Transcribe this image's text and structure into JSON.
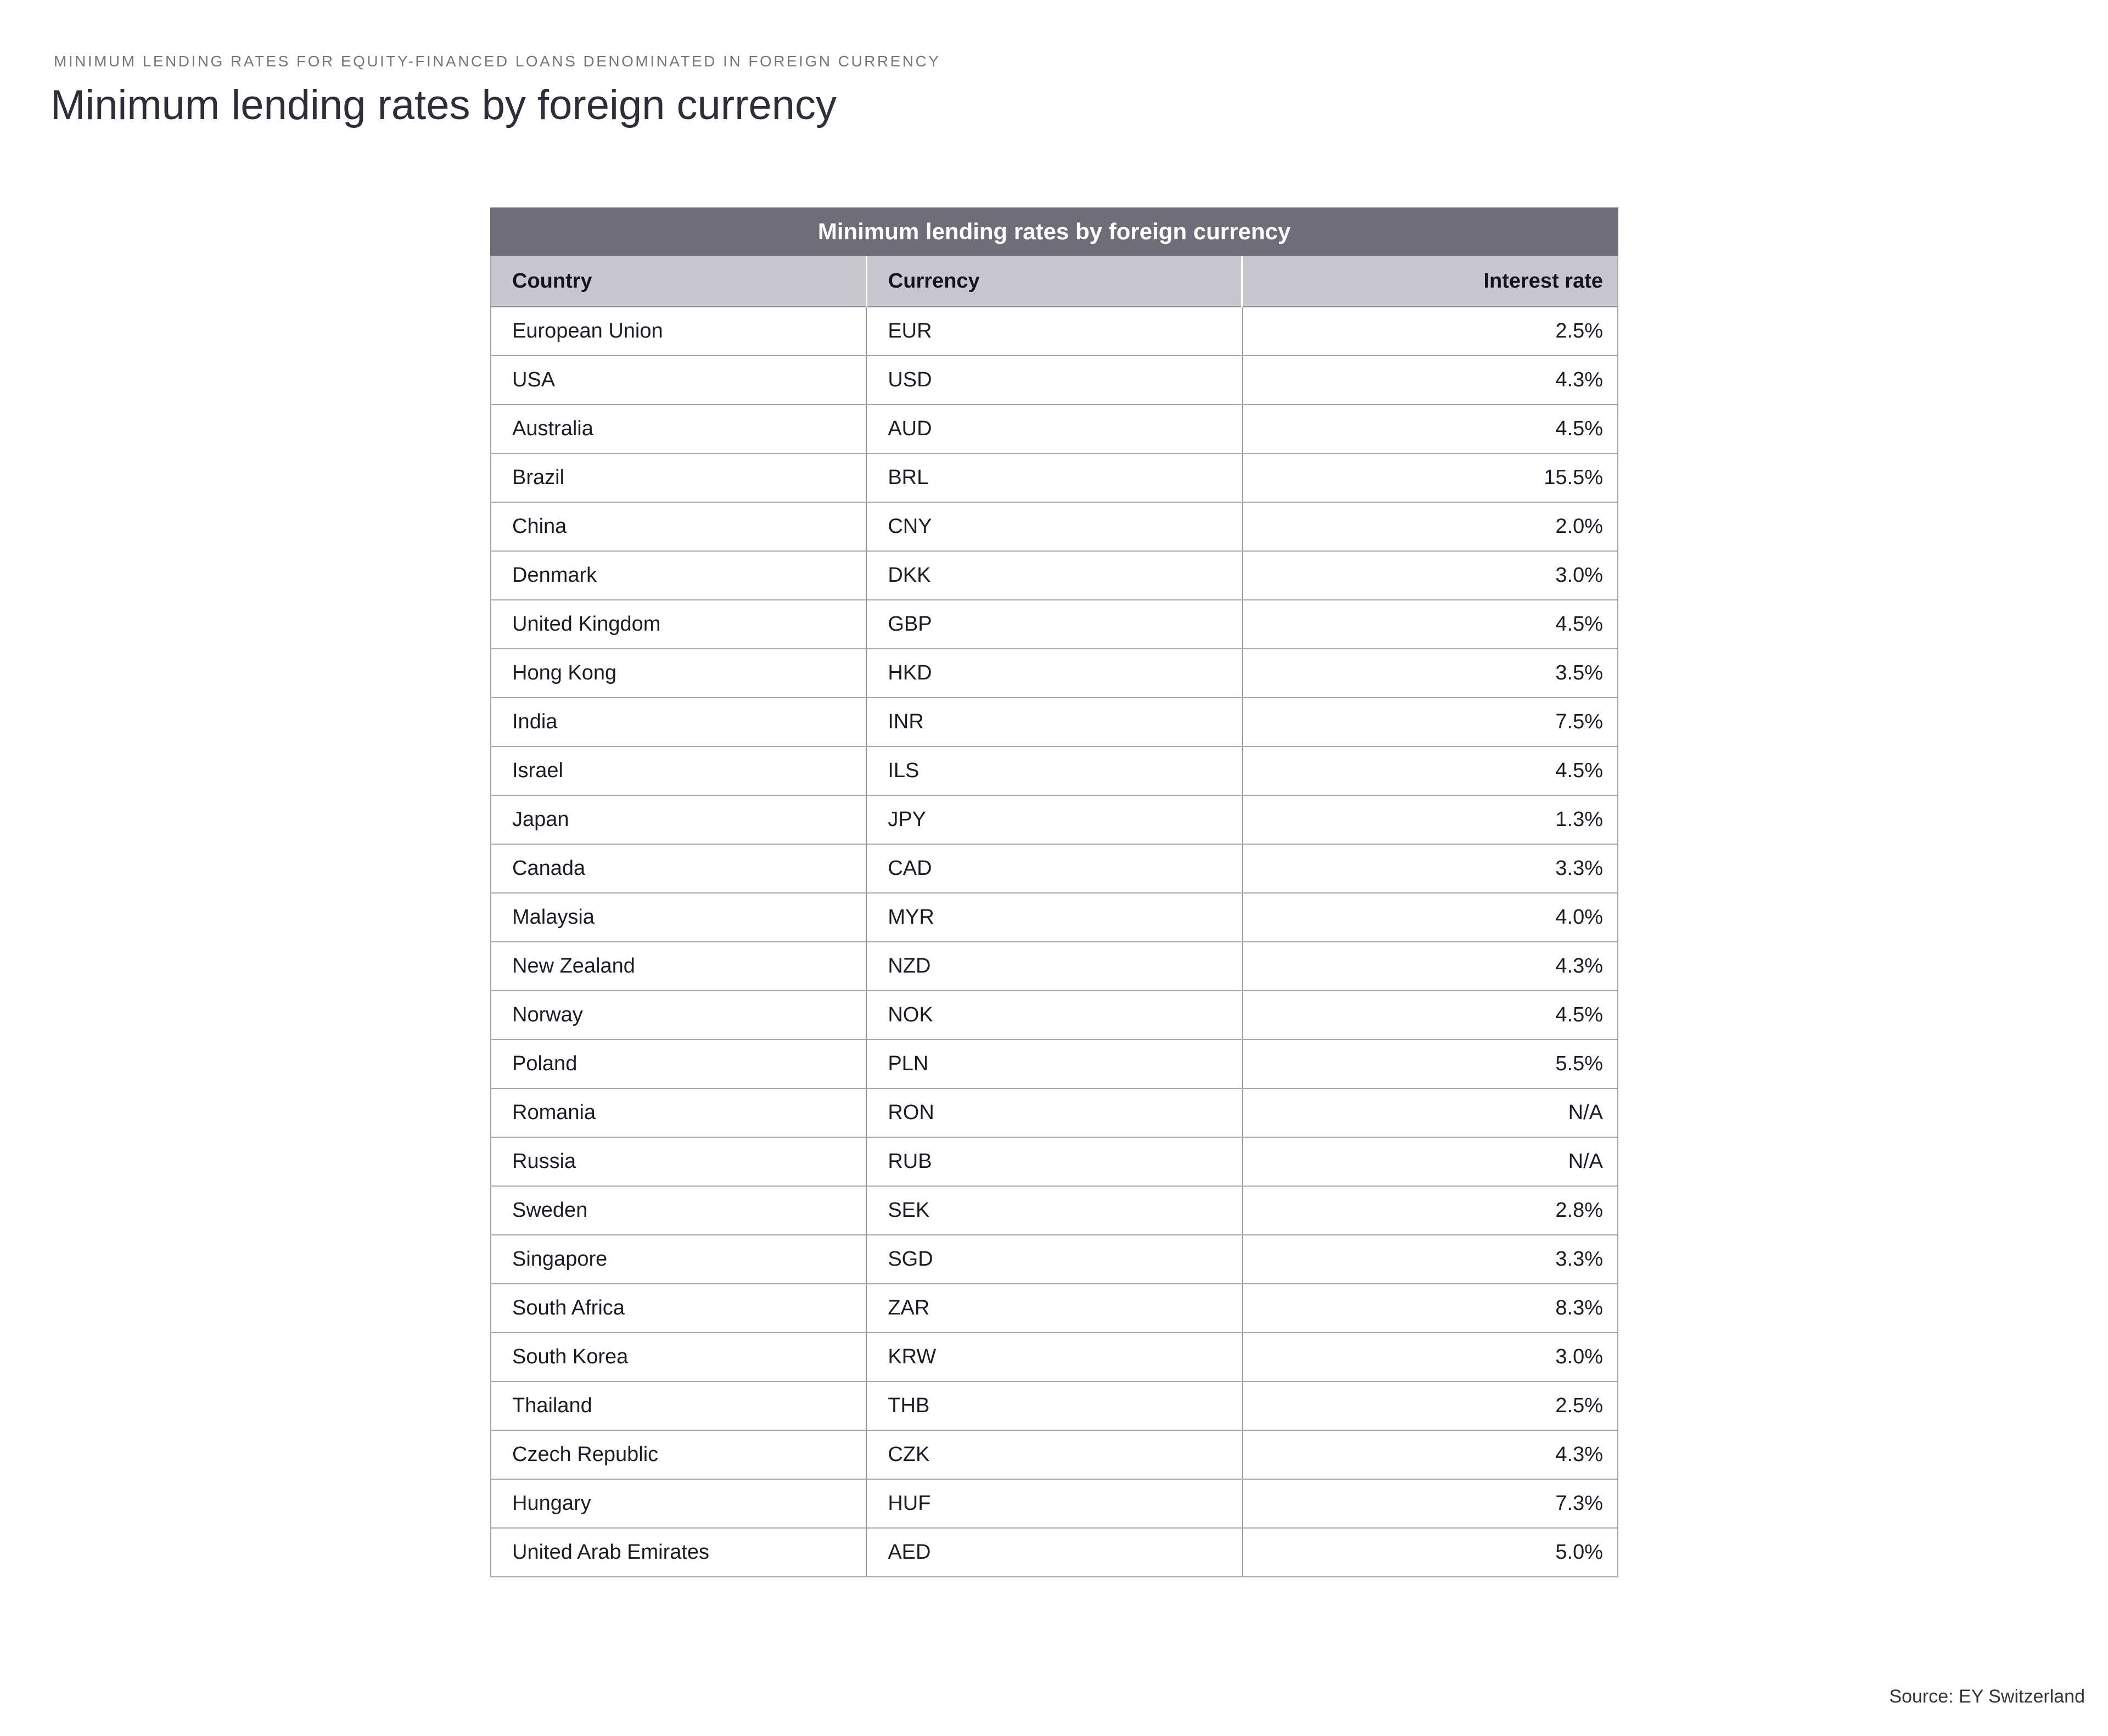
{
  "page": {
    "eyebrow": "MINIMUM LENDING RATES FOR EQUITY-FINANCED LOANS DENOMINATED IN FOREIGN CURRENCY",
    "title": "Minimum lending rates by foreign currency",
    "source": "Source: EY Switzerland"
  },
  "table": {
    "title": "Minimum lending rates by foreign currency",
    "columns": [
      "Country",
      "Currency",
      "Interest rate"
    ]
  },
  "colors": {
    "title_bar_bg": "#6f6e78",
    "header_row_bg": "#c8c7ce",
    "horizontal_border": "#a7a7ad",
    "vertical_border": "#96969d",
    "heading_text": "#2e2e38",
    "eyebrow_text": "#75757f",
    "body_text": "#1c1c26"
  },
  "chart_data": {
    "type": "table",
    "title": "Minimum lending rates by foreign currency",
    "columns": [
      "Country",
      "Currency",
      "Interest rate"
    ],
    "rows": [
      [
        "European Union",
        "EUR",
        "2.5%"
      ],
      [
        "USA",
        "USD",
        "4.3%"
      ],
      [
        "Australia",
        "AUD",
        "4.5%"
      ],
      [
        "Brazil",
        "BRL",
        "15.5%"
      ],
      [
        "China",
        "CNY",
        "2.0%"
      ],
      [
        "Denmark",
        "DKK",
        "3.0%"
      ],
      [
        "United Kingdom",
        "GBP",
        "4.5%"
      ],
      [
        "Hong Kong",
        "HKD",
        "3.5%"
      ],
      [
        "India",
        "INR",
        "7.5%"
      ],
      [
        "Israel",
        "ILS",
        "4.5%"
      ],
      [
        "Japan",
        "JPY",
        "1.3%"
      ],
      [
        "Canada",
        "CAD",
        "3.3%"
      ],
      [
        "Malaysia",
        "MYR",
        "4.0%"
      ],
      [
        "New Zealand",
        "NZD",
        "4.3%"
      ],
      [
        "Norway",
        "NOK",
        "4.5%"
      ],
      [
        "Poland",
        "PLN",
        "5.5%"
      ],
      [
        "Romania",
        "RON",
        "N/A"
      ],
      [
        "Russia",
        "RUB",
        "N/A"
      ],
      [
        "Sweden",
        "SEK",
        "2.8%"
      ],
      [
        "Singapore",
        "SGD",
        "3.3%"
      ],
      [
        "South Africa",
        "ZAR",
        "8.3%"
      ],
      [
        "South Korea",
        "KRW",
        "3.0%"
      ],
      [
        "Thailand",
        "THB",
        "2.5%"
      ],
      [
        "Czech Republic",
        "CZK",
        "4.3%"
      ],
      [
        "Hungary",
        "HUF",
        "7.3%"
      ],
      [
        "United Arab Emirates",
        "AED",
        "5.0%"
      ]
    ],
    "source": "Source: EY Switzerland",
    "layout": {
      "title_bar": "dark gray, centered white bold text",
      "header_row": "light gray with white vertical separators",
      "rate_column_alignment": "right",
      "grid": "full borders"
    }
  }
}
